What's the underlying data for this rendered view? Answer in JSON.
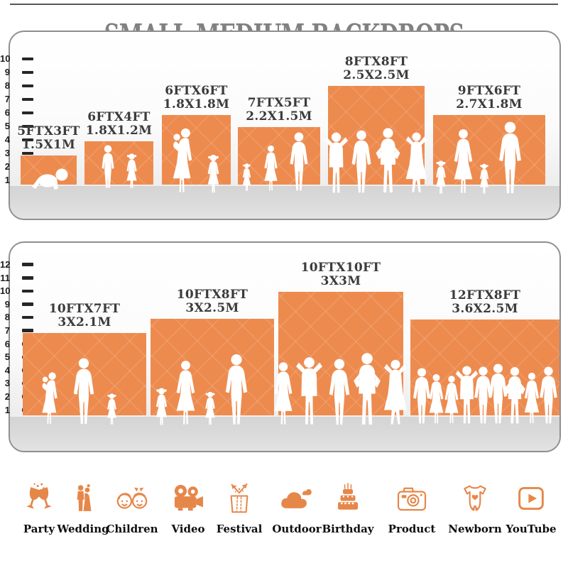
{
  "page": {
    "title": "SMALL-MEDIUM BACKDROPS"
  },
  "colors": {
    "backdrop_orange": "#ED8B4F",
    "icon_orange": "#E6874A",
    "title_gray": "#818181",
    "label_dark": "#3B3B3B",
    "ruler_black": "#1C1C1C",
    "floor_gray": "#D6D6D6"
  },
  "top_panel": {
    "ruler_labels": [
      "1",
      "2",
      "3",
      "4",
      "5",
      "6",
      "7",
      "8",
      "9",
      "10"
    ],
    "backdrops": [
      {
        "size_ft": "5FTX3FT",
        "size_m": "1.5X1M"
      },
      {
        "size_ft": "6FTX4FT",
        "size_m": "1.8X1.2M"
      },
      {
        "size_ft": "6FTX6FT",
        "size_m": "1.8X1.8M"
      },
      {
        "size_ft": "7FTX5FT",
        "size_m": "2.2X1.5M"
      },
      {
        "size_ft": "8FTX8FT",
        "size_m": "2.5X2.5M"
      },
      {
        "size_ft": "9FTX6FT",
        "size_m": "2.7X1.8M"
      }
    ]
  },
  "bottom_panel": {
    "ruler_labels": [
      "1",
      "2",
      "3",
      "4",
      "5",
      "6",
      "7",
      "8",
      "9",
      "10",
      "11",
      "12"
    ],
    "backdrops": [
      {
        "size_ft": "10FTX7FT",
        "size_m": "3X2.1M"
      },
      {
        "size_ft": "10FTX8FT",
        "size_m": "3X2.5M"
      },
      {
        "size_ft": "10FTX10FT",
        "size_m": "3X3M"
      },
      {
        "size_ft": "12FTX8FT",
        "size_m": "3.6X2.5M"
      }
    ]
  },
  "categories": [
    {
      "label": "Party",
      "icon": "party-icon"
    },
    {
      "label": "Wedding",
      "icon": "wedding-icon"
    },
    {
      "label": "Children",
      "icon": "children-icon"
    },
    {
      "label": "Video",
      "icon": "video-icon"
    },
    {
      "label": "Festival",
      "icon": "festival-icon"
    },
    {
      "label": "Outdoor",
      "icon": "outdoor-icon"
    },
    {
      "label": "Birthday",
      "icon": "birthday-icon"
    },
    {
      "label": "Product",
      "icon": "product-icon"
    },
    {
      "label": "Newborn",
      "icon": "newborn-icon"
    },
    {
      "label": "YouTube",
      "icon": "youtube-icon"
    }
  ]
}
